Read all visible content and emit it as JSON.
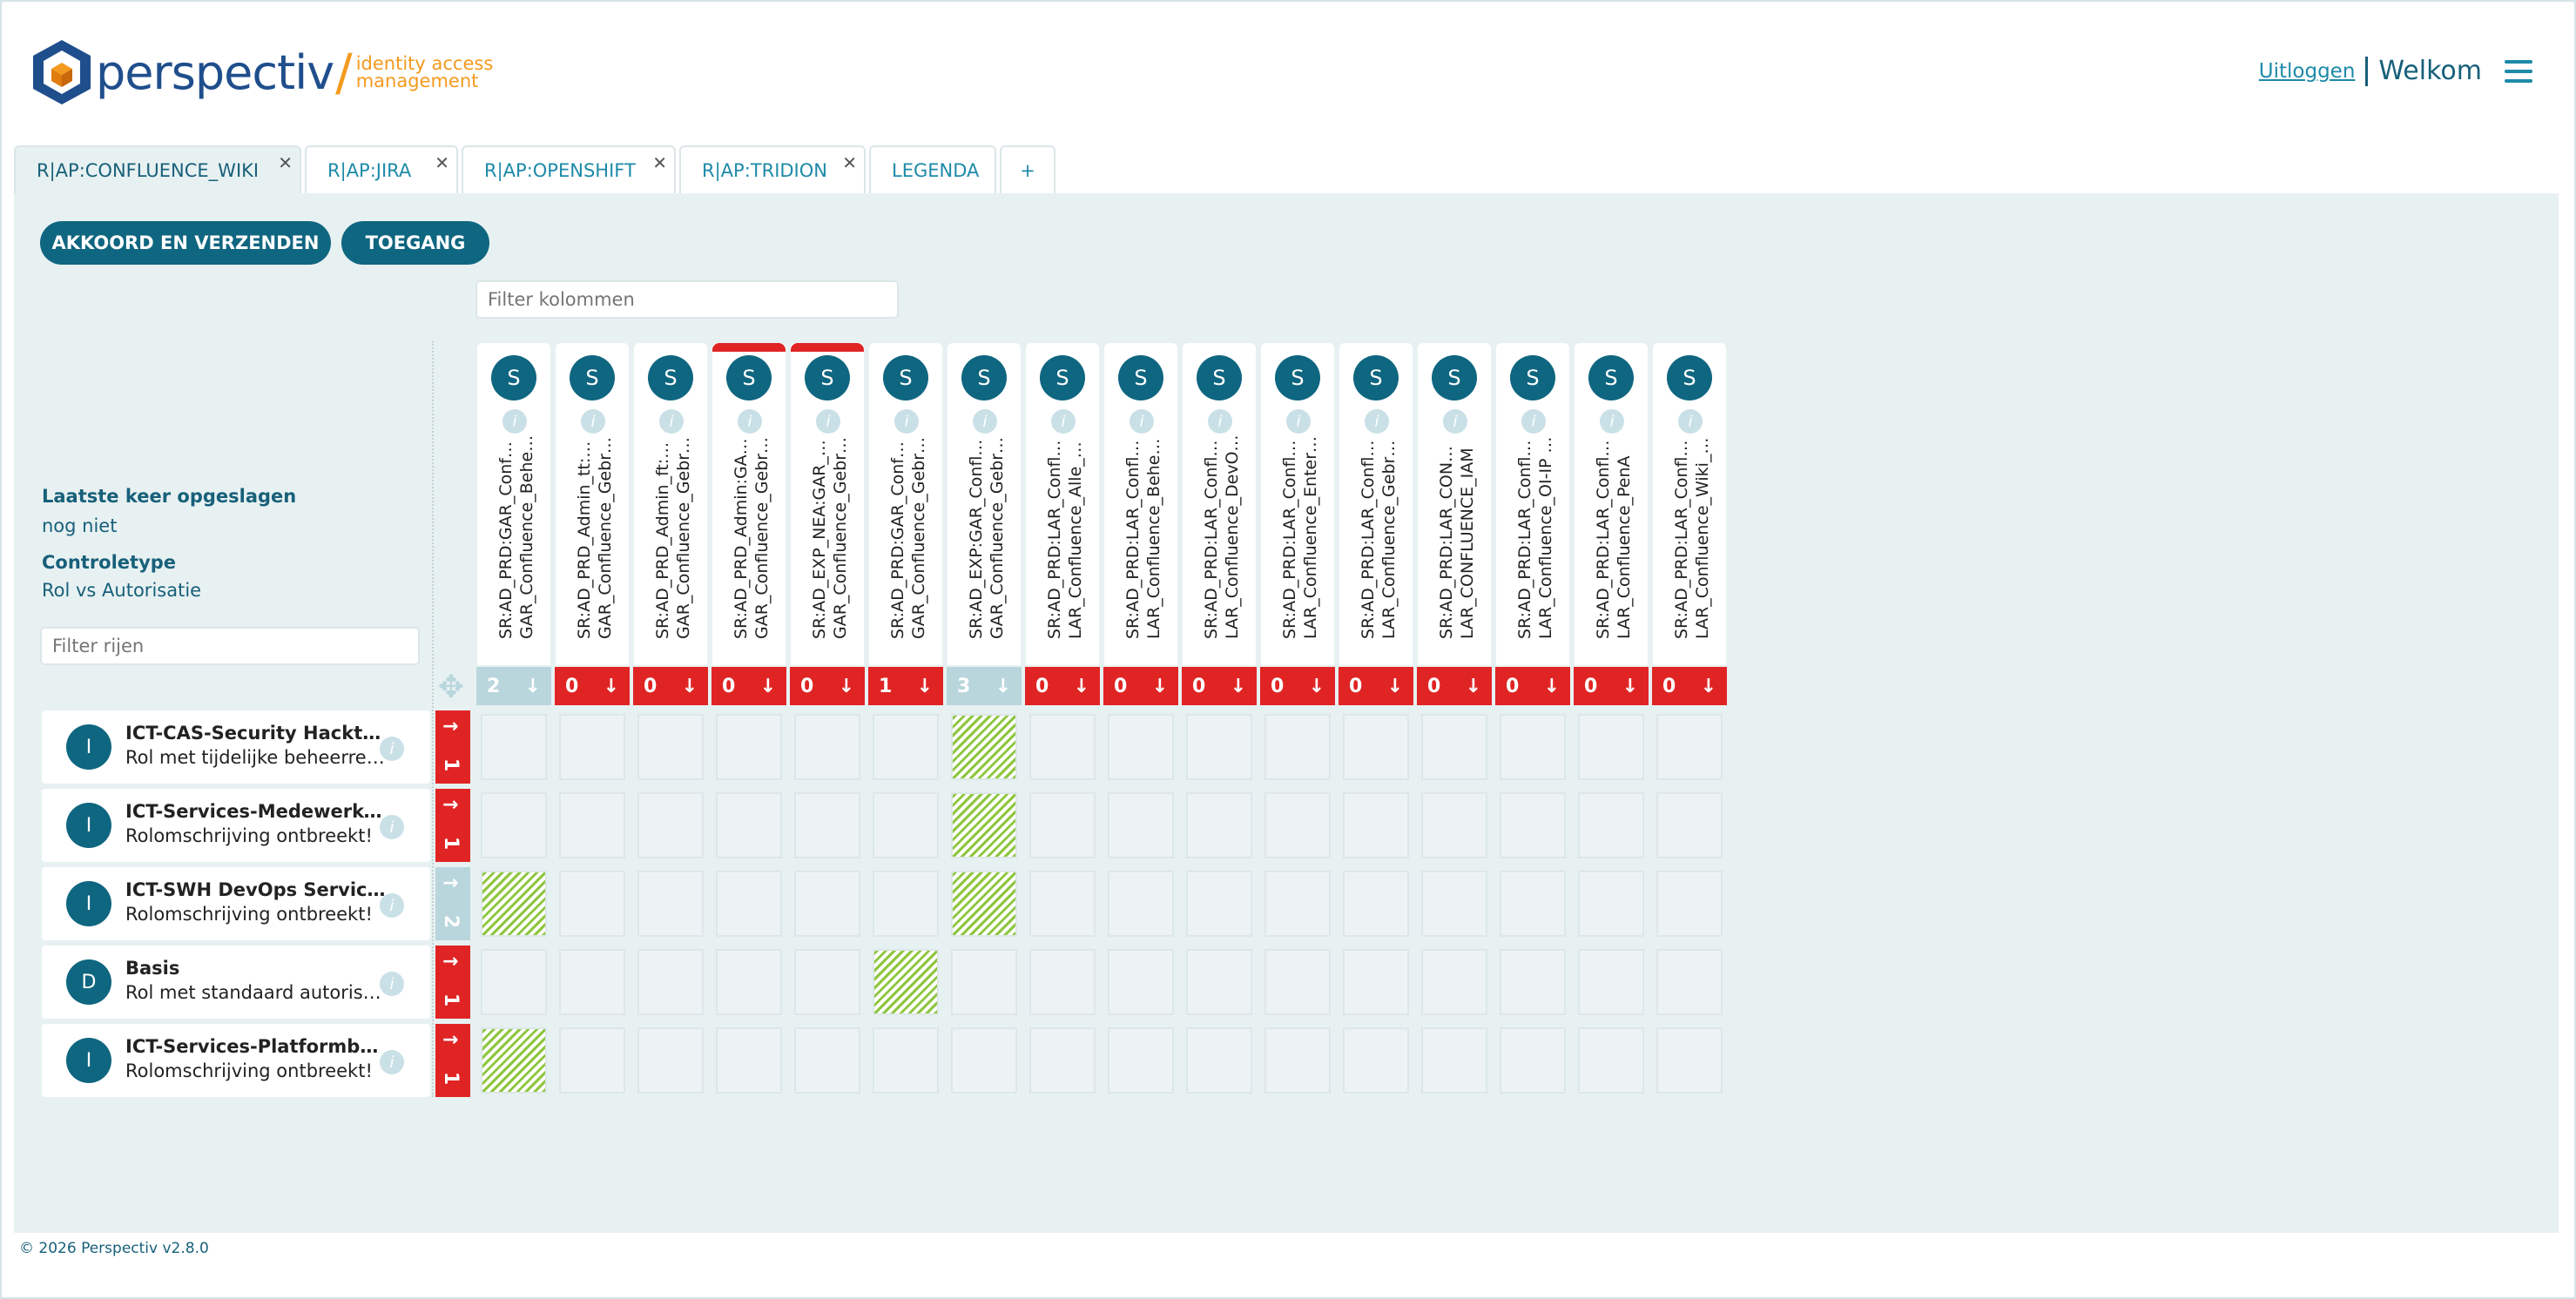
{
  "header": {
    "brand": "perspectiv",
    "tagline_line1": "identity access",
    "tagline_line2": "management",
    "logout_label": "Uitloggen",
    "welcome_label": "Welkom"
  },
  "tabs": [
    {
      "label": "R|AP:CONFLUENCE_WIKI",
      "closable": true,
      "active": true
    },
    {
      "label": "R|AP:JIRA",
      "closable": true
    },
    {
      "label": "R|AP:OPENSHIFT",
      "closable": true
    },
    {
      "label": "R|AP:TRIDION",
      "closable": true
    },
    {
      "label": "LEGENDA",
      "closable": false
    },
    {
      "label": "+",
      "closable": false
    }
  ],
  "actions": {
    "submit_label": "AKKOORD EN VERZENDEN",
    "access_label": "TOEGANG"
  },
  "filters": {
    "columns_placeholder": "Filter kolommen",
    "rows_placeholder": "Filter rijen"
  },
  "meta": {
    "last_saved_label": "Laatste keer opgeslagen",
    "last_saved_value": "nog niet",
    "control_type_label": "Controletype",
    "control_type_value": "Rol vs Autorisatie"
  },
  "columns": [
    {
      "badge": "S",
      "line1": "SR:AD_PRD:GAR_Conf…",
      "line2": "GAR_Confluence_Behe…",
      "count": "2",
      "light": true
    },
    {
      "badge": "S",
      "line1": "SR:AD_PRD_Admin_tt:…",
      "line2": "GAR_Confluence_Gebr…",
      "count": "0"
    },
    {
      "badge": "S",
      "line1": "SR:AD_PRD_Admin_ft:…",
      "line2": "GAR_Confluence_Gebr…",
      "count": "0"
    },
    {
      "badge": "S",
      "line1": "SR:AD_PRD_Admin:GA…",
      "line2": "GAR_Confluence_Gebr…",
      "count": "0",
      "flag": true
    },
    {
      "badge": "S",
      "line1": "SR:AD_EXP_NEA:GAR_…",
      "line2": "GAR_Confluence_Gebr…",
      "count": "0",
      "flag": true
    },
    {
      "badge": "S",
      "line1": "SR:AD_PRD:GAR_Conf…",
      "line2": "GAR_Confluence_Gebr…",
      "count": "1"
    },
    {
      "badge": "S",
      "line1": "SR:AD_EXP:GAR_Confl…",
      "line2": "GAR_Confluence_Gebr…",
      "count": "3",
      "light": true
    },
    {
      "badge": "S",
      "line1": "SR:AD_PRD:LAR_Confl…",
      "line2": "LAR_Confluence_Alle_…",
      "count": "0"
    },
    {
      "badge": "S",
      "line1": "SR:AD_PRD:LAR_Confl…",
      "line2": "LAR_Confluence_Behe…",
      "count": "0"
    },
    {
      "badge": "S",
      "line1": "SR:AD_PRD:LAR_Confl…",
      "line2": "LAR_Confluence_DevO…",
      "count": "0"
    },
    {
      "badge": "S",
      "line1": "SR:AD_PRD:LAR_Confl…",
      "line2": "LAR_Confluence_Enter…",
      "count": "0"
    },
    {
      "badge": "S",
      "line1": "SR:AD_PRD:LAR_Confl…",
      "line2": "LAR_Confluence_Gebr…",
      "count": "0"
    },
    {
      "badge": "S",
      "line1": "SR:AD_PRD:LAR_CON…",
      "line2": "LAR_CONFLUENCE_IAM",
      "count": "0"
    },
    {
      "badge": "S",
      "line1": "SR:AD_PRD:LAR_Confl…",
      "line2": "LAR_Confluence_OI-IP …",
      "count": "0"
    },
    {
      "badge": "S",
      "line1": "SR:AD_PRD:LAR_Confl…",
      "line2": "LAR_Confluence_PenA",
      "count": "0"
    },
    {
      "badge": "S",
      "line1": "SR:AD_PRD:LAR_Confl…",
      "line2": "LAR_Confluence_Wiki_…",
      "count": "0"
    }
  ],
  "rows": [
    {
      "badge": "I",
      "title": "ICT-CAS-Security Hacktes…",
      "subtitle": "Rol met tijdelijke beheerrec…",
      "count": "1",
      "light": false,
      "checked": [
        6
      ]
    },
    {
      "badge": "I",
      "title": "ICT-Services-Medewerker …",
      "subtitle": "Rolomschrijving ontbreekt!",
      "count": "1",
      "light": false,
      "checked": [
        6
      ]
    },
    {
      "badge": "I",
      "title": "ICT-SWH DevOps Servicet…",
      "subtitle": "Rolomschrijving ontbreekt!",
      "count": "2",
      "light": true,
      "checked": [
        0,
        6
      ]
    },
    {
      "badge": "D",
      "title": "Basis",
      "subtitle": "Rol met standaard autorisat…",
      "count": "1",
      "light": false,
      "checked": [
        5
      ]
    },
    {
      "badge": "I",
      "title": "ICT-Services-Platformbeh…",
      "subtitle": "Rolomschrijving ontbreekt!",
      "count": "1",
      "light": false,
      "checked": [
        0
      ]
    }
  ],
  "footer": {
    "copyright": "© 2026 Perspectiv v2.8.0"
  },
  "colors": {
    "accent": "#0f6680",
    "alert": "#e02424",
    "muted": "#b9d6dd",
    "panel": "#e8f1f2"
  }
}
